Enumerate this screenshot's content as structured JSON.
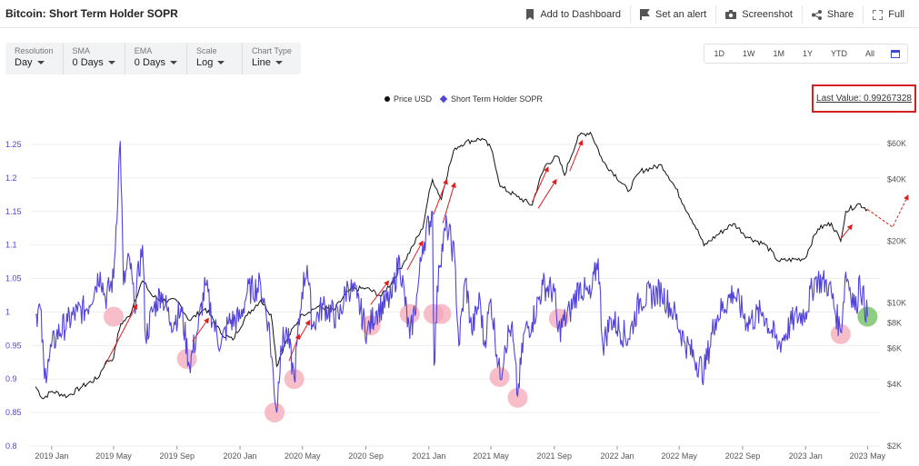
{
  "header": {
    "title": "Bitcoin: Short Term Holder SOPR",
    "actions": [
      {
        "label": "Add to Dashboard",
        "icon": "bookmark-icon"
      },
      {
        "label": "Set an alert",
        "icon": "alert-flag-icon"
      },
      {
        "label": "Screenshot",
        "icon": "camera-icon"
      },
      {
        "label": "Share",
        "icon": "share-icon"
      },
      {
        "label": "Full",
        "icon": "fullscreen-icon"
      }
    ]
  },
  "controls": [
    {
      "label": "Resolution",
      "value": "Day"
    },
    {
      "label": "SMA",
      "value": "0 Days"
    },
    {
      "label": "EMA",
      "value": "0 Days"
    },
    {
      "label": "Scale",
      "value": "Log"
    },
    {
      "label": "Chart Type",
      "value": "Line"
    }
  ],
  "ranges": [
    "1D",
    "1W",
    "1M",
    "1Y",
    "YTD",
    "All"
  ],
  "last_value": "Last Value: 0.99267328",
  "colors": {
    "sopr": "#5244d8",
    "price": "#111111",
    "marker": "#f4a7b5",
    "marker_green": "#7dc36b",
    "arrow": "#e01e1e"
  },
  "chart_data": {
    "type": "line",
    "x_ticks": [
      "2019 Jan",
      "2019 May",
      "2019 Sep",
      "2020 Jan",
      "2020 May",
      "2020 Sep",
      "2021 Jan",
      "2021 May",
      "2021 Sep",
      "2022 Jan",
      "2022 May",
      "2022 Sep",
      "2023 Jan",
      "2023 May"
    ],
    "y_left_ticks": [
      "1.25",
      "1.2",
      "1.15",
      "1.1",
      "1.05",
      "1",
      "0.95",
      "0.9",
      "0.85",
      "0.8"
    ],
    "y_left_range": [
      0.8,
      1.25
    ],
    "y_right_ticks": [
      "$60K",
      "$40K",
      "$20K",
      "$10K",
      "$8K",
      "$6K",
      "$4K",
      "$2K"
    ],
    "y_right_scale": "log",
    "legend_position": "top-center",
    "series": [
      {
        "name": "Price USD",
        "axis": "right",
        "points": [
          [
            "2018-12-01",
            3900
          ],
          [
            "2018-12-15",
            3400
          ],
          [
            "2019-01-01",
            3700
          ],
          [
            "2019-02-01",
            3500
          ],
          [
            "2019-03-01",
            3900
          ],
          [
            "2019-04-01",
            4300
          ],
          [
            "2019-04-15",
            5100
          ],
          [
            "2019-05-01",
            5400
          ],
          [
            "2019-05-15",
            7900
          ],
          [
            "2019-06-01",
            8600
          ],
          [
            "2019-06-26",
            12800
          ],
          [
            "2019-07-15",
            10800
          ],
          [
            "2019-08-01",
            10300
          ],
          [
            "2019-09-01",
            10200
          ],
          [
            "2019-09-25",
            8200
          ],
          [
            "2019-10-26",
            9400
          ],
          [
            "2019-11-25",
            7100
          ],
          [
            "2019-12-18",
            6600
          ],
          [
            "2020-01-15",
            8700
          ],
          [
            "2020-02-10",
            10300
          ],
          [
            "2020-03-01",
            8800
          ],
          [
            "2020-03-12",
            4900
          ],
          [
            "2020-04-01",
            6600
          ],
          [
            "2020-05-01",
            8800
          ],
          [
            "2020-06-01",
            9600
          ],
          [
            "2020-07-01",
            9200
          ],
          [
            "2020-08-01",
            11600
          ],
          [
            "2020-09-01",
            11800
          ],
          [
            "2020-10-01",
            10800
          ],
          [
            "2020-10-25",
            13000
          ],
          [
            "2020-11-15",
            16000
          ],
          [
            "2020-12-01",
            19000
          ],
          [
            "2020-12-20",
            23000
          ],
          [
            "2021-01-08",
            40000
          ],
          [
            "2021-01-25",
            32000
          ],
          [
            "2021-02-21",
            57000
          ],
          [
            "2021-03-13",
            61000
          ],
          [
            "2021-04-14",
            63500
          ],
          [
            "2021-05-01",
            57000
          ],
          [
            "2021-05-19",
            37000
          ],
          [
            "2021-06-21",
            33000
          ],
          [
            "2021-07-20",
            30000
          ],
          [
            "2021-08-15",
            47000
          ],
          [
            "2021-09-07",
            52000
          ],
          [
            "2021-09-21",
            42000
          ],
          [
            "2021-10-20",
            66000
          ],
          [
            "2021-11-10",
            68000
          ],
          [
            "2021-12-04",
            49000
          ],
          [
            "2022-01-22",
            35000
          ],
          [
            "2022-02-15",
            44000
          ],
          [
            "2022-03-28",
            47000
          ],
          [
            "2022-05-10",
            30000
          ],
          [
            "2022-06-18",
            19000
          ],
          [
            "2022-08-14",
            24400
          ],
          [
            "2022-09-10",
            21000
          ],
          [
            "2022-10-15",
            19200
          ],
          [
            "2022-11-09",
            16000
          ],
          [
            "2022-12-31",
            16500
          ],
          [
            "2023-01-25",
            23000
          ],
          [
            "2023-02-20",
            24500
          ],
          [
            "2023-03-10",
            20000
          ],
          [
            "2023-03-20",
            28000
          ],
          [
            "2023-04-14",
            30500
          ],
          [
            "2023-05-01",
            28600
          ]
        ]
      },
      {
        "name": "Short Term Holder SOPR",
        "axis": "left",
        "points": [
          [
            "2018-12-01",
            0.995
          ],
          [
            "2018-12-10",
            1.005
          ],
          [
            "2018-12-18",
            0.9
          ],
          [
            "2018-12-25",
            0.93
          ],
          [
            "2019-01-10",
            0.965
          ],
          [
            "2019-02-01",
            0.985
          ],
          [
            "2019-02-20",
            1.0
          ],
          [
            "2019-03-10",
            1.005
          ],
          [
            "2019-04-05",
            1.06
          ],
          [
            "2019-04-15",
            1.02
          ],
          [
            "2019-05-01",
            1.05
          ],
          [
            "2019-05-14",
            1.26
          ],
          [
            "2019-05-20",
            1.04
          ],
          [
            "2019-06-01",
            1.08
          ],
          [
            "2019-06-10",
            1.01
          ],
          [
            "2019-06-26",
            1.1
          ],
          [
            "2019-07-02",
            0.96
          ],
          [
            "2019-07-15",
            1.0
          ],
          [
            "2019-08-01",
            1.03
          ],
          [
            "2019-08-20",
            0.985
          ],
          [
            "2019-09-10",
            1.0
          ],
          [
            "2019-09-25",
            0.92
          ],
          [
            "2019-10-10",
            0.97
          ],
          [
            "2019-10-26",
            1.04
          ],
          [
            "2019-11-10",
            0.985
          ],
          [
            "2019-11-25",
            0.95
          ],
          [
            "2019-12-10",
            0.985
          ],
          [
            "2020-01-01",
            0.99
          ],
          [
            "2020-01-15",
            1.03
          ],
          [
            "2020-02-10",
            1.04
          ],
          [
            "2020-02-25",
            0.985
          ],
          [
            "2020-03-12",
            0.85
          ],
          [
            "2020-03-20",
            0.95
          ],
          [
            "2020-04-01",
            0.97
          ],
          [
            "2020-04-15",
            0.9
          ],
          [
            "2020-04-30",
            1.03
          ],
          [
            "2020-05-10",
            1.07
          ],
          [
            "2020-05-20",
            0.98
          ],
          [
            "2020-06-10",
            1.01
          ],
          [
            "2020-07-10",
            0.99
          ],
          [
            "2020-07-28",
            1.04
          ],
          [
            "2020-08-15",
            1.02
          ],
          [
            "2020-09-03",
            0.97
          ],
          [
            "2020-09-20",
            1.0
          ],
          [
            "2020-10-20",
            1.02
          ],
          [
            "2020-11-05",
            1.08
          ],
          [
            "2020-11-25",
            0.96
          ],
          [
            "2020-12-10",
            1.03
          ],
          [
            "2020-12-20",
            1.1
          ],
          [
            "2021-01-08",
            1.15
          ],
          [
            "2021-01-11",
            0.92
          ],
          [
            "2021-01-20",
            1.07
          ],
          [
            "2021-02-05",
            1.13
          ],
          [
            "2021-02-20",
            1.08
          ],
          [
            "2021-02-28",
            0.95
          ],
          [
            "2021-03-13",
            1.05
          ],
          [
            "2021-03-25",
            0.97
          ],
          [
            "2021-04-10",
            1.02
          ],
          [
            "2021-04-18",
            0.95
          ],
          [
            "2021-05-01",
            1.02
          ],
          [
            "2021-05-19",
            0.9
          ],
          [
            "2021-05-28",
            0.95
          ],
          [
            "2021-06-10",
            0.98
          ],
          [
            "2021-06-22",
            0.875
          ],
          [
            "2021-07-05",
            0.97
          ],
          [
            "2021-07-20",
            0.985
          ],
          [
            "2021-08-10",
            1.04
          ],
          [
            "2021-09-01",
            1.03
          ],
          [
            "2021-09-08",
            0.97
          ],
          [
            "2021-10-01",
            1.0
          ],
          [
            "2021-10-20",
            1.04
          ],
          [
            "2021-11-10",
            1.02
          ],
          [
            "2021-11-25",
            1.08
          ],
          [
            "2021-12-04",
            0.95
          ],
          [
            "2021-12-20",
            0.99
          ],
          [
            "2022-01-22",
            0.96
          ],
          [
            "2022-02-15",
            1.02
          ],
          [
            "2022-03-28",
            1.03
          ],
          [
            "2022-04-20",
            1.0
          ],
          [
            "2022-05-12",
            0.955
          ],
          [
            "2022-06-18",
            0.91
          ],
          [
            "2022-07-10",
            0.99
          ],
          [
            "2022-08-14",
            1.03
          ],
          [
            "2022-09-10",
            0.985
          ],
          [
            "2022-10-10",
            1.0
          ],
          [
            "2022-11-09",
            0.95
          ],
          [
            "2022-12-10",
            0.99
          ],
          [
            "2023-01-01",
            1.0
          ],
          [
            "2023-01-20",
            1.05
          ],
          [
            "2023-02-15",
            1.04
          ],
          [
            "2023-03-10",
            0.97
          ],
          [
            "2023-03-20",
            1.06
          ],
          [
            "2023-04-10",
            1.0
          ],
          [
            "2023-04-14",
            1.05
          ],
          [
            "2023-05-01",
            0.993
          ]
        ]
      }
    ],
    "annotations": {
      "circles": [
        [
          "2019-05-01",
          0.993
        ],
        [
          "2019-09-20",
          0.93
        ],
        [
          "2020-03-08",
          0.85
        ],
        [
          "2020-04-15",
          0.9
        ],
        [
          "2020-09-10",
          0.98
        ],
        [
          "2020-11-25",
          0.997
        ],
        [
          "2021-01-10",
          0.997
        ],
        [
          "2021-01-25",
          0.997
        ],
        [
          "2021-05-18",
          0.903
        ],
        [
          "2021-06-22",
          0.872
        ],
        [
          "2021-09-10",
          0.99
        ],
        [
          "2023-03-10",
          0.967
        ]
      ],
      "green_circle": [
        "2023-05-01",
        0.993
      ]
    }
  }
}
